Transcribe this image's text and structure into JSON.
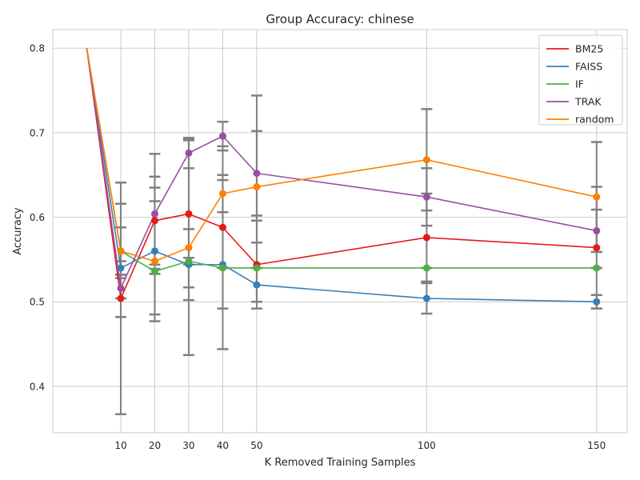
{
  "chart_data": {
    "type": "line",
    "title": "Group Accuracy: chinese",
    "xlabel": "K Removed Training Samples",
    "ylabel": "Accuracy",
    "xlim": [
      -10,
      159
    ],
    "ylim": [
      0.345,
      0.822
    ],
    "x_ticks": [
      10,
      20,
      30,
      40,
      50,
      100,
      150
    ],
    "y_ticks": [
      0.4,
      0.5,
      0.6,
      0.7,
      0.8
    ],
    "y_tick_labels": [
      "0.4",
      "0.5",
      "0.6",
      "0.7",
      "0.8"
    ],
    "grid": true,
    "legend_position": "top-right",
    "baseline": {
      "x": 0,
      "y": 0.8
    },
    "errorbar_color": "#808080",
    "x": [
      10,
      20,
      30,
      40,
      50,
      100,
      150
    ],
    "series": [
      {
        "name": "BM25",
        "color": "#e41a1c",
        "values": [
          0.504,
          0.596,
          0.604,
          0.588,
          0.544,
          0.576,
          0.564
        ],
        "lower": [
          0.367,
          0.544,
          0.517,
          0.492,
          0.492,
          0.524,
          0.492
        ],
        "upper": [
          0.641,
          0.648,
          0.691,
          0.684,
          0.596,
          0.628,
          0.636
        ]
      },
      {
        "name": "FAISS",
        "color": "#377eb8",
        "values": [
          0.54,
          0.56,
          0.544,
          0.544,
          0.52,
          0.504,
          0.5
        ],
        "lower": [
          0.532,
          0.485,
          0.502,
          0.444,
          0.5,
          0.486,
          0.492
        ],
        "upper": [
          0.548,
          0.635,
          0.586,
          0.644,
          0.54,
          0.522,
          0.508
        ]
      },
      {
        "name": "IF",
        "color": "#4daf4a",
        "values": [
          0.56,
          0.536,
          0.548,
          0.54,
          0.54,
          0.54,
          0.54
        ],
        "lower": [
          0.532,
          0.533,
          0.544,
          0.54,
          0.54,
          0.54,
          0.54
        ],
        "upper": [
          0.588,
          0.539,
          0.552,
          0.54,
          0.54,
          0.54,
          0.54
        ]
      },
      {
        "name": "TRAK",
        "color": "#984ea3",
        "values": [
          0.516,
          0.604,
          0.676,
          0.696,
          0.652,
          0.624,
          0.584
        ],
        "lower": [
          0.504,
          0.533,
          0.658,
          0.679,
          0.602,
          0.59,
          0.559
        ],
        "upper": [
          0.528,
          0.675,
          0.694,
          0.713,
          0.702,
          0.658,
          0.609
        ]
      },
      {
        "name": "random",
        "color": "#ff7f00",
        "values": [
          0.56,
          0.548,
          0.564,
          0.628,
          0.636,
          0.668,
          0.624
        ],
        "lower": [
          0.482,
          0.477,
          0.437,
          0.606,
          0.57,
          0.608,
          0.559
        ],
        "upper": [
          0.616,
          0.619,
          0.692,
          0.65,
          0.744,
          0.728,
          0.689
        ]
      }
    ]
  }
}
